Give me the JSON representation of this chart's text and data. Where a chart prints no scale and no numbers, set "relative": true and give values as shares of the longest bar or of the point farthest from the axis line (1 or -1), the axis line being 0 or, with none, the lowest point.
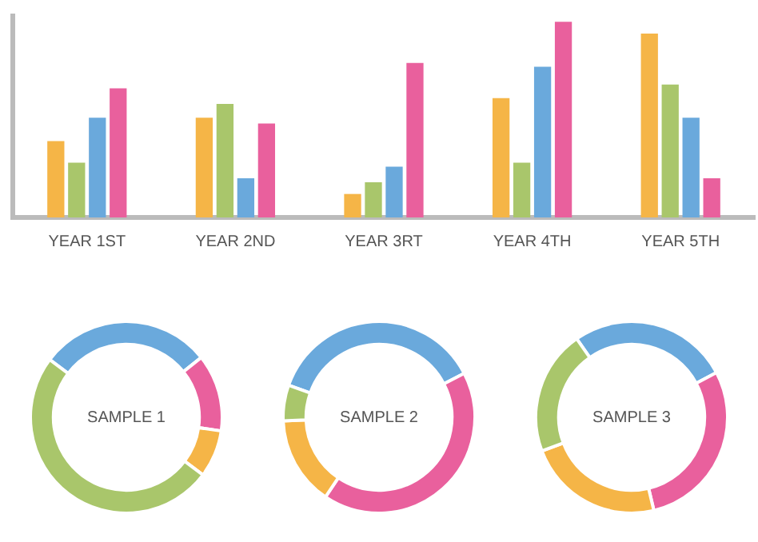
{
  "chart_data": [
    {
      "type": "bar",
      "relative": true,
      "categories": [
        "YEAR 1ST",
        "YEAR 2ND",
        "YEAR 3RT",
        "YEAR 4TH",
        "YEAR 5TH"
      ],
      "series": [
        {
          "color": "#f5b547",
          "values": [
            0.39,
            0.51,
            0.12,
            0.61,
            0.94
          ]
        },
        {
          "color": "#a9c66b",
          "values": [
            0.28,
            0.58,
            0.18,
            0.28,
            0.68
          ]
        },
        {
          "color": "#6aa9dc",
          "values": [
            0.51,
            0.2,
            0.26,
            0.77,
            0.51
          ]
        },
        {
          "color": "#e9609d",
          "values": [
            0.66,
            0.48,
            0.79,
            1,
            0.2
          ]
        }
      ],
      "grid": false,
      "legend": false
    },
    {
      "type": "donut",
      "title": "SAMPLE 1",
      "categories": [
        null,
        null,
        null,
        null
      ],
      "values": [
        29,
        13,
        8,
        50
      ],
      "colors": [
        "#6aa9dc",
        "#e9609d",
        "#f5b547",
        "#a9c66b"
      ],
      "legend": false
    },
    {
      "type": "donut",
      "title": "SAMPLE 2",
      "categories": [
        null,
        null,
        null,
        null
      ],
      "values": [
        37,
        42,
        15,
        6
      ],
      "colors": [
        "#6aa9dc",
        "#e9609d",
        "#f5b547",
        "#a9c66b"
      ],
      "legend": false
    },
    {
      "type": "donut",
      "title": "SAMPLE 3",
      "categories": [
        null,
        null,
        null,
        null
      ],
      "values": [
        27,
        29,
        23,
        21
      ],
      "colors": [
        "#6aa9dc",
        "#e9609d",
        "#f5b547",
        "#a9c66b"
      ],
      "legend": false
    }
  ]
}
